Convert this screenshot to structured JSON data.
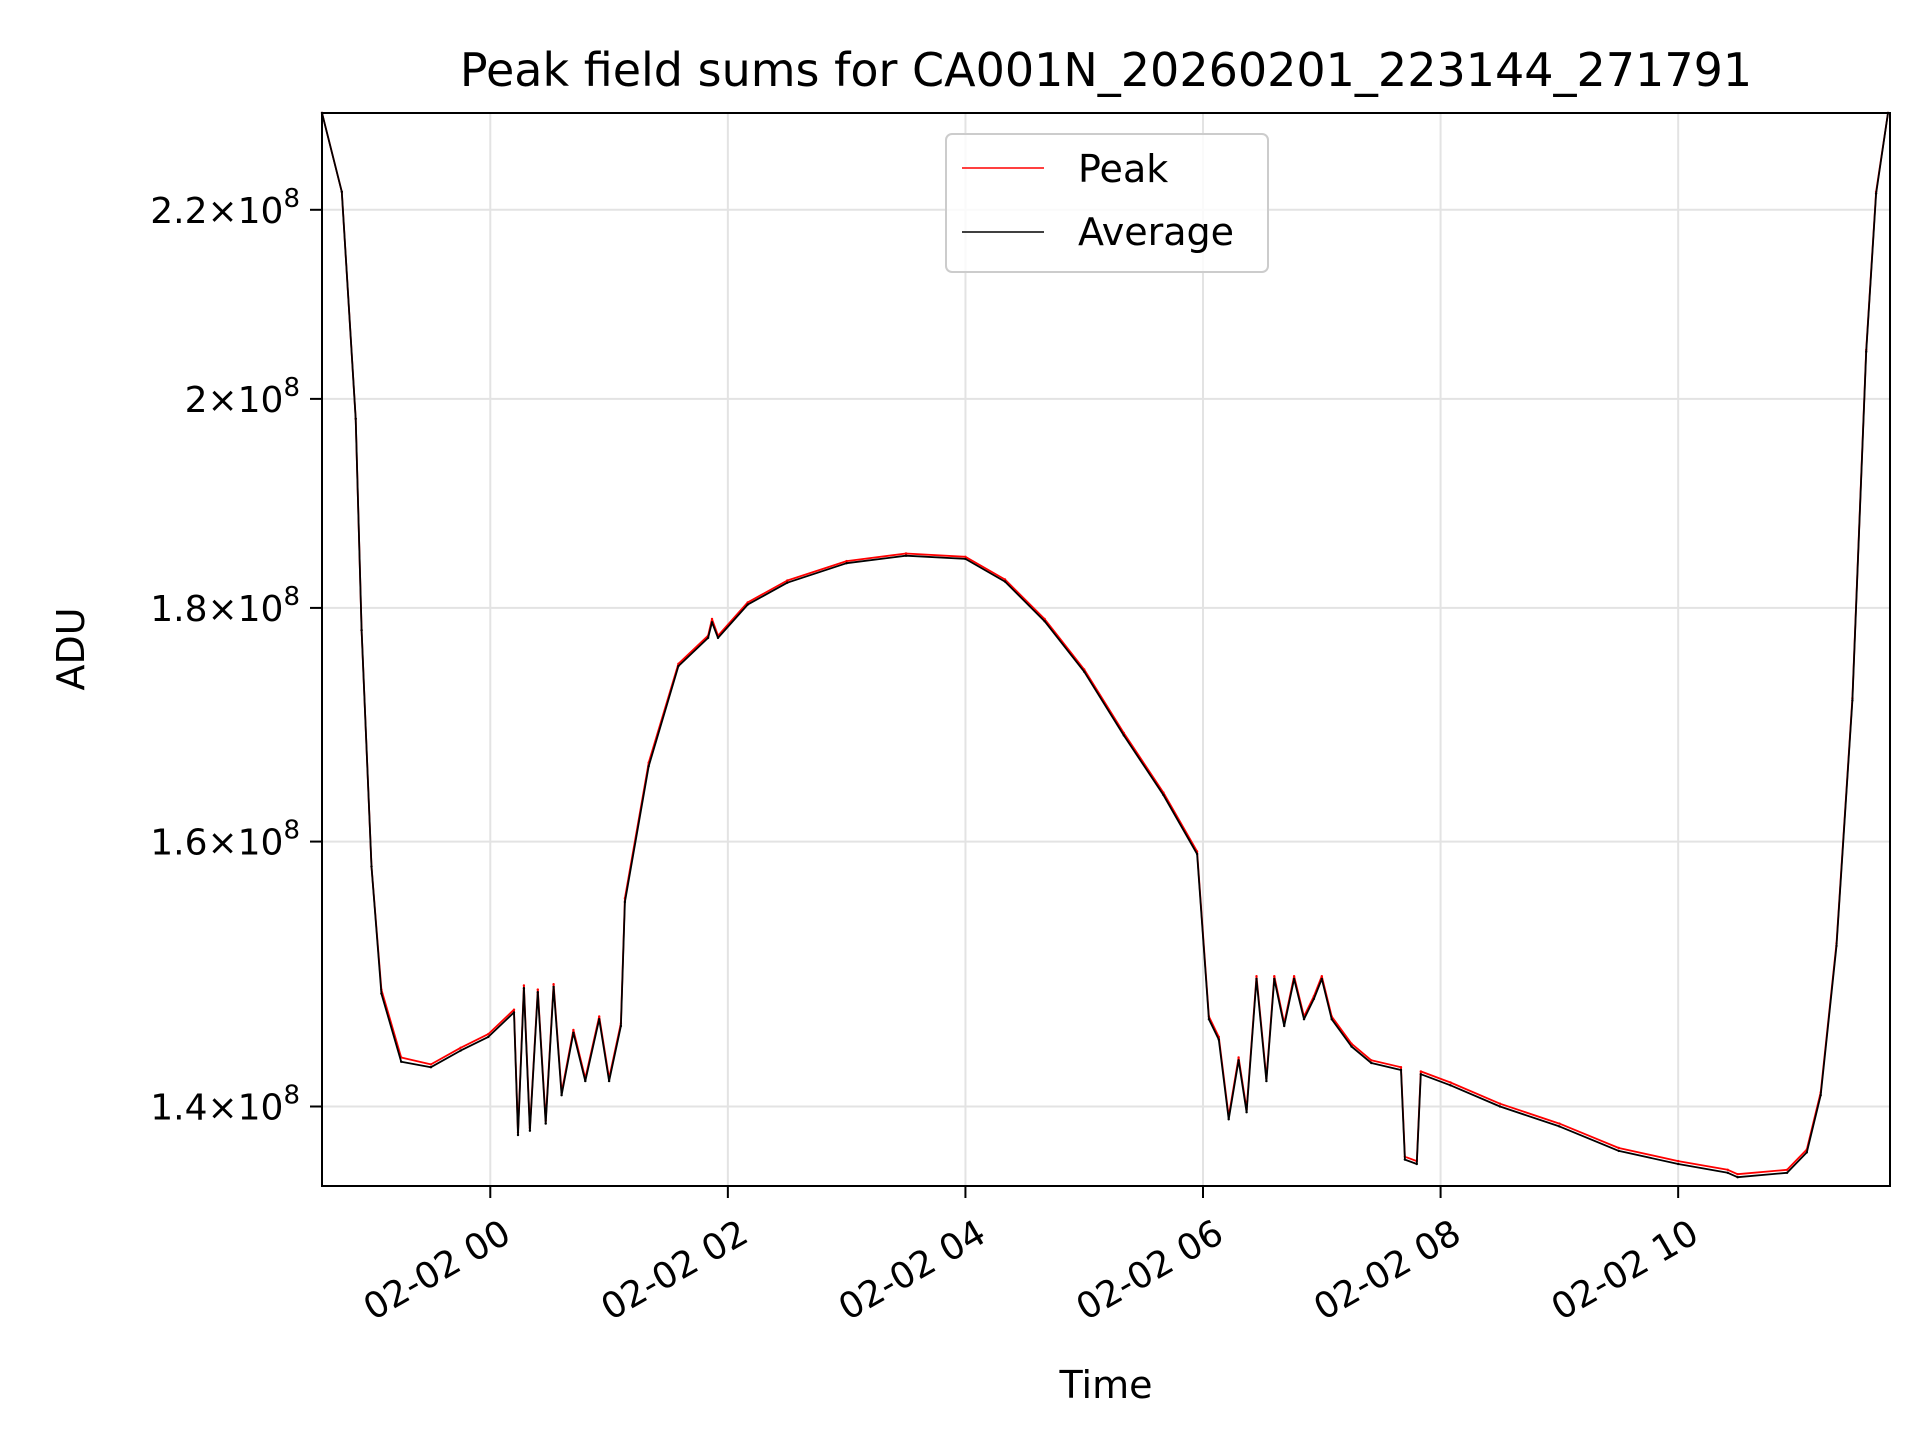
{
  "chart_data": {
    "type": "line",
    "title": "Peak field sums for CA001N_20260201_223144_271791",
    "xlabel": "Time",
    "ylabel": "ADU",
    "yscale": "log",
    "grid": true,
    "legend_position": "top-center",
    "xlim": [
      "2026-02-01 22:35",
      "2026-02-02 11:47"
    ],
    "ylim": [
      134500000,
      231000000
    ],
    "x_ticks": [
      "2026-02-02 00:00",
      "2026-02-02 02:00",
      "2026-02-02 04:00",
      "2026-02-02 06:00",
      "2026-02-02 08:00",
      "2026-02-02 10:00"
    ],
    "x_tick_labels": [
      "02-02 00",
      "02-02 02",
      "02-02 04",
      "02-02 06",
      "02-02 08",
      "02-02 10"
    ],
    "y_ticks": [
      140000000,
      160000000,
      180000000,
      200000000,
      220000000
    ],
    "y_tick_mantissas": [
      "1.4",
      "1.6",
      "1.8",
      "2",
      "2.2"
    ],
    "y_tick_base": "10",
    "y_tick_exponent": "8",
    "series": [
      {
        "name": "Peak",
        "color": "#ff0000",
        "points": [
          [
            "2026-02-01 22:35",
            231000000
          ],
          [
            "2026-02-01 22:45",
            222000000
          ],
          [
            "2026-02-01 22:52",
            198000000
          ],
          [
            "2026-02-01 22:55",
            178000000
          ],
          [
            "2026-02-01 23:00",
            158000000
          ],
          [
            "2026-02-01 23:05",
            148500000
          ],
          [
            "2026-02-01 23:15",
            143500000
          ],
          [
            "2026-02-01 23:30",
            143000000
          ],
          [
            "2026-02-01 23:45",
            144200000
          ],
          [
            "2026-02-01 23:59",
            145200000
          ],
          [
            "2026-02-02 00:12",
            147000000
          ],
          [
            "2026-02-02 00:14",
            138200000
          ],
          [
            "2026-02-02 00:17",
            148800000
          ],
          [
            "2026-02-02 00:20",
            138500000
          ],
          [
            "2026-02-02 00:24",
            148500000
          ],
          [
            "2026-02-02 00:28",
            139000000
          ],
          [
            "2026-02-02 00:32",
            148900000
          ],
          [
            "2026-02-02 00:36",
            141000000
          ],
          [
            "2026-02-02 00:42",
            145500000
          ],
          [
            "2026-02-02 00:48",
            142000000
          ],
          [
            "2026-02-02 00:55",
            146500000
          ],
          [
            "2026-02-02 01:00",
            142000000
          ],
          [
            "2026-02-02 01:06",
            146000000
          ],
          [
            "2026-02-02 01:08",
            155500000
          ],
          [
            "2026-02-02 01:20",
            166500000
          ],
          [
            "2026-02-02 01:35",
            175000000
          ],
          [
            "2026-02-02 01:50",
            177500000
          ],
          [
            "2026-02-02 01:52",
            179000000
          ],
          [
            "2026-02-02 01:55",
            177500000
          ],
          [
            "2026-02-02 02:10",
            180500000
          ],
          [
            "2026-02-02 02:30",
            182500000
          ],
          [
            "2026-02-02 03:00",
            184300000
          ],
          [
            "2026-02-02 03:30",
            185000000
          ],
          [
            "2026-02-02 04:00",
            184700000
          ],
          [
            "2026-02-02 04:20",
            182600000
          ],
          [
            "2026-02-02 04:40",
            179000000
          ],
          [
            "2026-02-02 05:00",
            174500000
          ],
          [
            "2026-02-02 05:20",
            169000000
          ],
          [
            "2026-02-02 05:40",
            164000000
          ],
          [
            "2026-02-02 05:57",
            159200000
          ],
          [
            "2026-02-02 06:03",
            146500000
          ],
          [
            "2026-02-02 06:08",
            145000000
          ],
          [
            "2026-02-02 06:13",
            139300000
          ],
          [
            "2026-02-02 06:18",
            143500000
          ],
          [
            "2026-02-02 06:22",
            139800000
          ],
          [
            "2026-02-02 06:27",
            149500000
          ],
          [
            "2026-02-02 06:32",
            142000000
          ],
          [
            "2026-02-02 06:36",
            149500000
          ],
          [
            "2026-02-02 06:41",
            146000000
          ],
          [
            "2026-02-02 06:46",
            149500000
          ],
          [
            "2026-02-02 06:51",
            146500000
          ],
          [
            "2026-02-02 06:56",
            148000000
          ],
          [
            "2026-02-02 07:00",
            149500000
          ],
          [
            "2026-02-02 07:05",
            146500000
          ],
          [
            "2026-02-02 07:15",
            144500000
          ],
          [
            "2026-02-02 07:25",
            143300000
          ],
          [
            "2026-02-02 07:40",
            142800000
          ],
          [
            "2026-02-02 07:42",
            136500000
          ],
          [
            "2026-02-02 07:48",
            136200000
          ],
          [
            "2026-02-02 07:50",
            142500000
          ],
          [
            "2026-02-02 08:05",
            141700000
          ],
          [
            "2026-02-02 08:30",
            140200000
          ],
          [
            "2026-02-02 09:00",
            138800000
          ],
          [
            "2026-02-02 09:30",
            137100000
          ],
          [
            "2026-02-02 10:00",
            136200000
          ],
          [
            "2026-02-02 10:25",
            135600000
          ],
          [
            "2026-02-02 10:30",
            135300000
          ],
          [
            "2026-02-02 10:55",
            135600000
          ],
          [
            "2026-02-02 11:05",
            137000000
          ],
          [
            "2026-02-02 11:12",
            141000000
          ],
          [
            "2026-02-02 11:20",
            152000000
          ],
          [
            "2026-02-02 11:28",
            172000000
          ],
          [
            "2026-02-02 11:35",
            205000000
          ],
          [
            "2026-02-02 11:40",
            222000000
          ],
          [
            "2026-02-02 11:46",
            231000000
          ]
        ]
      },
      {
        "name": "Average",
        "color": "#000000",
        "points": [
          [
            "2026-02-01 22:35",
            231000000
          ],
          [
            "2026-02-01 22:45",
            222000000
          ],
          [
            "2026-02-01 22:52",
            198000000
          ],
          [
            "2026-02-01 22:55",
            178000000
          ],
          [
            "2026-02-01 23:00",
            158000000
          ],
          [
            "2026-02-01 23:05",
            148200000
          ],
          [
            "2026-02-01 23:15",
            143200000
          ],
          [
            "2026-02-01 23:30",
            142800000
          ],
          [
            "2026-02-01 23:45",
            144000000
          ],
          [
            "2026-02-01 23:59",
            145000000
          ],
          [
            "2026-02-02 00:12",
            146800000
          ],
          [
            "2026-02-02 00:14",
            138000000
          ],
          [
            "2026-02-02 00:17",
            148600000
          ],
          [
            "2026-02-02 00:20",
            138300000
          ],
          [
            "2026-02-02 00:24",
            148300000
          ],
          [
            "2026-02-02 00:28",
            138800000
          ],
          [
            "2026-02-02 00:32",
            148700000
          ],
          [
            "2026-02-02 00:36",
            140800000
          ],
          [
            "2026-02-02 00:42",
            145300000
          ],
          [
            "2026-02-02 00:48",
            141800000
          ],
          [
            "2026-02-02 00:55",
            146300000
          ],
          [
            "2026-02-02 01:00",
            141800000
          ],
          [
            "2026-02-02 01:06",
            145800000
          ],
          [
            "2026-02-02 01:08",
            155200000
          ],
          [
            "2026-02-02 01:20",
            166200000
          ],
          [
            "2026-02-02 01:35",
            174800000
          ],
          [
            "2026-02-02 01:50",
            177300000
          ],
          [
            "2026-02-02 01:52",
            178700000
          ],
          [
            "2026-02-02 01:55",
            177300000
          ],
          [
            "2026-02-02 02:10",
            180300000
          ],
          [
            "2026-02-02 02:30",
            182300000
          ],
          [
            "2026-02-02 03:00",
            184100000
          ],
          [
            "2026-02-02 03:30",
            184800000
          ],
          [
            "2026-02-02 04:00",
            184500000
          ],
          [
            "2026-02-02 04:20",
            182400000
          ],
          [
            "2026-02-02 04:40",
            178800000
          ],
          [
            "2026-02-02 05:00",
            174300000
          ],
          [
            "2026-02-02 05:20",
            168800000
          ],
          [
            "2026-02-02 05:40",
            163800000
          ],
          [
            "2026-02-02 05:57",
            159000000
          ],
          [
            "2026-02-02 06:03",
            146300000
          ],
          [
            "2026-02-02 06:08",
            144800000
          ],
          [
            "2026-02-02 06:13",
            139100000
          ],
          [
            "2026-02-02 06:18",
            143300000
          ],
          [
            "2026-02-02 06:22",
            139600000
          ],
          [
            "2026-02-02 06:27",
            149300000
          ],
          [
            "2026-02-02 06:32",
            141800000
          ],
          [
            "2026-02-02 06:36",
            149300000
          ],
          [
            "2026-02-02 06:41",
            145800000
          ],
          [
            "2026-02-02 06:46",
            149300000
          ],
          [
            "2026-02-02 06:51",
            146300000
          ],
          [
            "2026-02-02 06:56",
            147800000
          ],
          [
            "2026-02-02 07:00",
            149300000
          ],
          [
            "2026-02-02 07:05",
            146300000
          ],
          [
            "2026-02-02 07:15",
            144300000
          ],
          [
            "2026-02-02 07:25",
            143100000
          ],
          [
            "2026-02-02 07:40",
            142600000
          ],
          [
            "2026-02-02 07:42",
            136300000
          ],
          [
            "2026-02-02 07:48",
            136000000
          ],
          [
            "2026-02-02 07:50",
            142300000
          ],
          [
            "2026-02-02 08:05",
            141500000
          ],
          [
            "2026-02-02 08:30",
            140000000
          ],
          [
            "2026-02-02 09:00",
            138600000
          ],
          [
            "2026-02-02 09:30",
            136900000
          ],
          [
            "2026-02-02 10:00",
            136000000
          ],
          [
            "2026-02-02 10:25",
            135400000
          ],
          [
            "2026-02-02 10:30",
            135100000
          ],
          [
            "2026-02-02 10:55",
            135400000
          ],
          [
            "2026-02-02 11:05",
            136800000
          ],
          [
            "2026-02-02 11:12",
            140800000
          ],
          [
            "2026-02-02 11:20",
            151800000
          ],
          [
            "2026-02-02 11:28",
            171800000
          ],
          [
            "2026-02-02 11:35",
            204800000
          ],
          [
            "2026-02-02 11:40",
            221800000
          ],
          [
            "2026-02-02 11:46",
            231000000
          ]
        ]
      }
    ]
  }
}
